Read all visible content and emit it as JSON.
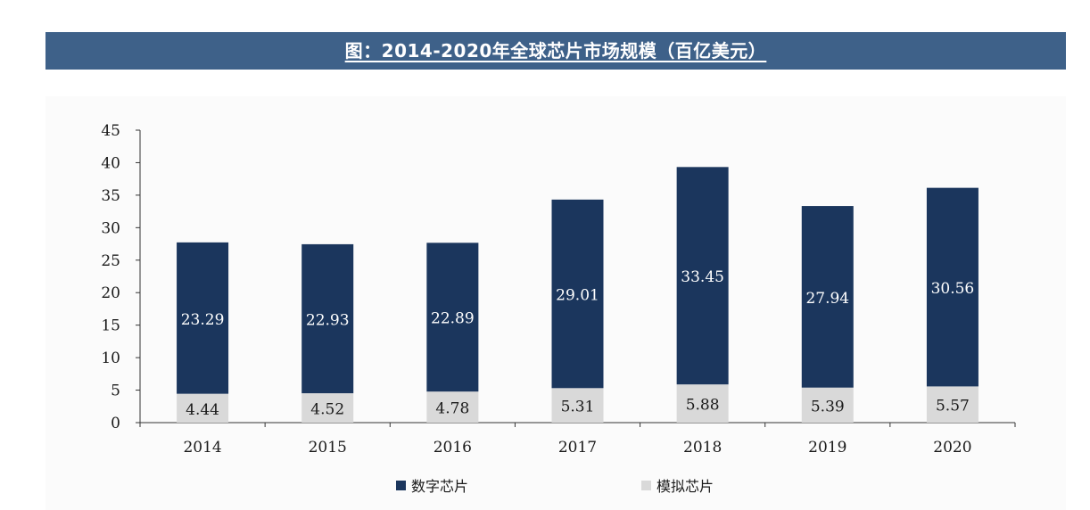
{
  "title": "图：2014-2020年全球芯片市场规模（百亿美元）",
  "colors": {
    "header_bg": "#3e6189",
    "digital": "#1b365d",
    "analog": "#d9d9d9"
  },
  "chart_data": {
    "type": "bar",
    "stacked": true,
    "categories": [
      "2014",
      "2015",
      "2016",
      "2017",
      "2018",
      "2019",
      "2020"
    ],
    "series": [
      {
        "name": "模拟芯片",
        "color": "#d9d9d9",
        "values": [
          4.44,
          4.52,
          4.78,
          5.31,
          5.88,
          5.39,
          5.57
        ]
      },
      {
        "name": "数字芯片",
        "color": "#1b365d",
        "values": [
          23.29,
          22.93,
          22.89,
          29.01,
          33.45,
          27.94,
          30.56
        ]
      }
    ],
    "ylim": [
      0,
      45
    ],
    "yticks": [
      "0",
      "5",
      "10",
      "15",
      "20",
      "25",
      "30",
      "35",
      "40",
      "45"
    ],
    "data_labels": {
      "analog": [
        "4.44",
        "4.52",
        "4.78",
        "5.31",
        "5.88",
        "5.39",
        "5.57"
      ],
      "digital": [
        "23.29",
        "22.93",
        "22.89",
        "29.01",
        "33.45",
        "27.94",
        "30.56"
      ]
    },
    "legend": {
      "position": "bottom",
      "items": [
        {
          "label": "数字芯片",
          "color": "#1b365d"
        },
        {
          "label": "模拟芯片",
          "color": "#d9d9d9"
        }
      ]
    },
    "grid": false
  }
}
